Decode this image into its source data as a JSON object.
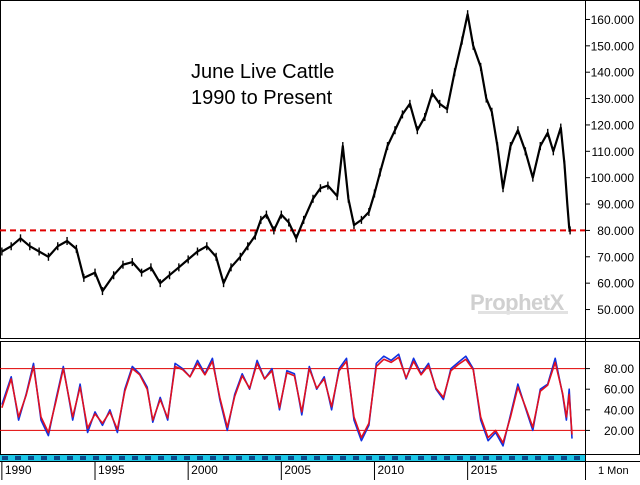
{
  "chart_data": [
    {
      "type": "line",
      "title": "June Live Cattle",
      "subtitle": "1990 to Present",
      "xlabel": "",
      "ylabel": "",
      "x_tick_labels": [
        "1990",
        "1995",
        "2000",
        "2005",
        "2010",
        "2015"
      ],
      "x_ticks": [
        1990,
        1995,
        2000,
        2005,
        2010,
        2015
      ],
      "xlim": [
        1989.9,
        2021.3
      ],
      "ylim": [
        43,
        167
      ],
      "y_ticks": [
        50,
        60,
        70,
        80,
        90,
        100,
        110,
        120,
        130,
        140,
        150,
        160
      ],
      "y_tick_labels": [
        "50.000",
        "60.000",
        "70.000",
        "80.000",
        "90.000",
        "100.000",
        "110.000",
        "120.000",
        "130.000",
        "140.000",
        "150.000",
        "160.000"
      ],
      "grid": false,
      "reference_lines": [
        {
          "y": 80,
          "color": "#e00000",
          "style": "dashed"
        }
      ],
      "series": [
        {
          "color": "#000000",
          "points": [
            [
              1990.0,
              72
            ],
            [
              1990.5,
              74
            ],
            [
              1991.0,
              77
            ],
            [
              1991.5,
              74
            ],
            [
              1992.0,
              72
            ],
            [
              1992.5,
              70
            ],
            [
              1993.0,
              74
            ],
            [
              1993.5,
              76
            ],
            [
              1994.0,
              73
            ],
            [
              1994.4,
              62
            ],
            [
              1995.0,
              64
            ],
            [
              1995.4,
              57
            ],
            [
              1996.0,
              63
            ],
            [
              1996.5,
              67
            ],
            [
              1997.0,
              68
            ],
            [
              1997.5,
              64
            ],
            [
              1998.0,
              66
            ],
            [
              1998.5,
              60
            ],
            [
              1999.0,
              63
            ],
            [
              1999.5,
              66
            ],
            [
              2000.0,
              69
            ],
            [
              2000.5,
              72
            ],
            [
              2001.0,
              74
            ],
            [
              2001.5,
              70
            ],
            [
              2001.9,
              60
            ],
            [
              2002.3,
              66
            ],
            [
              2002.8,
              70
            ],
            [
              2003.2,
              74
            ],
            [
              2003.6,
              78
            ],
            [
              2003.9,
              84
            ],
            [
              2004.2,
              86
            ],
            [
              2004.6,
              80
            ],
            [
              2005.0,
              86
            ],
            [
              2005.4,
              83
            ],
            [
              2005.8,
              77
            ],
            [
              2006.2,
              84
            ],
            [
              2006.7,
              92
            ],
            [
              2007.1,
              96
            ],
            [
              2007.5,
              97
            ],
            [
              2008.0,
              93
            ],
            [
              2008.3,
              112
            ],
            [
              2008.6,
              92
            ],
            [
              2008.9,
              82
            ],
            [
              2009.3,
              84
            ],
            [
              2009.7,
              87
            ],
            [
              2010.0,
              94
            ],
            [
              2010.3,
              102
            ],
            [
              2010.7,
              112
            ],
            [
              2011.1,
              118
            ],
            [
              2011.5,
              124
            ],
            [
              2011.9,
              128
            ],
            [
              2012.3,
              118
            ],
            [
              2012.7,
              123
            ],
            [
              2013.1,
              132
            ],
            [
              2013.5,
              128
            ],
            [
              2013.9,
              126
            ],
            [
              2014.3,
              140
            ],
            [
              2014.7,
              152
            ],
            [
              2015.0,
              162
            ],
            [
              2015.3,
              150
            ],
            [
              2015.7,
              142
            ],
            [
              2016.0,
              130
            ],
            [
              2016.3,
              125
            ],
            [
              2016.6,
              112
            ],
            [
              2016.9,
              96
            ],
            [
              2017.3,
              112
            ],
            [
              2017.7,
              118
            ],
            [
              2018.1,
              110
            ],
            [
              2018.5,
              100
            ],
            [
              2018.9,
              112
            ],
            [
              2019.3,
              117
            ],
            [
              2019.6,
              110
            ],
            [
              2020.0,
              119
            ],
            [
              2020.2,
              105
            ],
            [
              2020.35,
              90
            ],
            [
              2020.45,
              81
            ],
            [
              2020.5,
              80
            ]
          ]
        }
      ]
    },
    {
      "type": "line",
      "title": "",
      "xlim": [
        1989.9,
        2021.3
      ],
      "ylim": [
        0,
        100
      ],
      "y_ticks": [
        20,
        40,
        60,
        80
      ],
      "y_tick_labels": [
        "20.00",
        "40.00",
        "60.00",
        "80.00"
      ],
      "grid": false,
      "reference_lines": [
        {
          "y": 80,
          "color": "#e00000"
        },
        {
          "y": 20,
          "color": "#e00000"
        }
      ],
      "series": [
        {
          "color": "#1030e0",
          "points": [
            [
              1990.0,
              45
            ],
            [
              1990.5,
              72
            ],
            [
              1990.9,
              30
            ],
            [
              1991.3,
              55
            ],
            [
              1991.7,
              85
            ],
            [
              1992.1,
              30
            ],
            [
              1992.5,
              15
            ],
            [
              1992.9,
              50
            ],
            [
              1993.3,
              82
            ],
            [
              1993.8,
              30
            ],
            [
              1994.2,
              65
            ],
            [
              1994.6,
              18
            ],
            [
              1995.0,
              38
            ],
            [
              1995.4,
              25
            ],
            [
              1995.8,
              40
            ],
            [
              1996.2,
              18
            ],
            [
              1996.6,
              60
            ],
            [
              1997.0,
              82
            ],
            [
              1997.4,
              75
            ],
            [
              1997.8,
              62
            ],
            [
              1998.1,
              28
            ],
            [
              1998.5,
              52
            ],
            [
              1998.9,
              30
            ],
            [
              1999.3,
              85
            ],
            [
              1999.7,
              80
            ],
            [
              2000.1,
              72
            ],
            [
              2000.5,
              88
            ],
            [
              2000.9,
              75
            ],
            [
              2001.3,
              90
            ],
            [
              2001.7,
              50
            ],
            [
              2002.1,
              20
            ],
            [
              2002.5,
              55
            ],
            [
              2002.9,
              75
            ],
            [
              2003.3,
              60
            ],
            [
              2003.7,
              88
            ],
            [
              2004.1,
              70
            ],
            [
              2004.5,
              80
            ],
            [
              2004.9,
              40
            ],
            [
              2005.3,
              78
            ],
            [
              2005.7,
              75
            ],
            [
              2006.1,
              35
            ],
            [
              2006.5,
              82
            ],
            [
              2006.9,
              60
            ],
            [
              2007.3,
              72
            ],
            [
              2007.7,
              40
            ],
            [
              2008.1,
              80
            ],
            [
              2008.5,
              90
            ],
            [
              2008.9,
              30
            ],
            [
              2009.3,
              10
            ],
            [
              2009.7,
              25
            ],
            [
              2010.1,
              85
            ],
            [
              2010.5,
              92
            ],
            [
              2010.9,
              88
            ],
            [
              2011.3,
              94
            ],
            [
              2011.7,
              70
            ],
            [
              2012.1,
              90
            ],
            [
              2012.5,
              75
            ],
            [
              2012.9,
              85
            ],
            [
              2013.3,
              60
            ],
            [
              2013.7,
              50
            ],
            [
              2014.1,
              80
            ],
            [
              2014.5,
              86
            ],
            [
              2014.9,
              92
            ],
            [
              2015.3,
              80
            ],
            [
              2015.7,
              30
            ],
            [
              2016.1,
              10
            ],
            [
              2016.5,
              18
            ],
            [
              2016.9,
              5
            ],
            [
              2017.3,
              35
            ],
            [
              2017.7,
              65
            ],
            [
              2018.1,
              42
            ],
            [
              2018.5,
              20
            ],
            [
              2018.9,
              60
            ],
            [
              2019.3,
              65
            ],
            [
              2019.7,
              90
            ],
            [
              2020.1,
              55
            ],
            [
              2020.3,
              30
            ],
            [
              2020.45,
              60
            ],
            [
              2020.6,
              12
            ]
          ]
        },
        {
          "color": "#e01020",
          "points": [
            [
              1990.0,
              42
            ],
            [
              1990.5,
              70
            ],
            [
              1990.9,
              33
            ],
            [
              1991.3,
              54
            ],
            [
              1991.7,
              82
            ],
            [
              1992.1,
              33
            ],
            [
              1992.5,
              18
            ],
            [
              1992.9,
              48
            ],
            [
              1993.3,
              80
            ],
            [
              1993.8,
              33
            ],
            [
              1994.2,
              62
            ],
            [
              1994.6,
              22
            ],
            [
              1995.0,
              36
            ],
            [
              1995.4,
              27
            ],
            [
              1995.8,
              38
            ],
            [
              1996.2,
              21
            ],
            [
              1996.6,
              58
            ],
            [
              1997.0,
              80
            ],
            [
              1997.4,
              74
            ],
            [
              1997.8,
              60
            ],
            [
              1998.1,
              30
            ],
            [
              1998.5,
              50
            ],
            [
              1998.9,
              32
            ],
            [
              1999.3,
              82
            ],
            [
              1999.7,
              79
            ],
            [
              2000.1,
              72
            ],
            [
              2000.5,
              85
            ],
            [
              2000.9,
              74
            ],
            [
              2001.3,
              87
            ],
            [
              2001.7,
              52
            ],
            [
              2002.1,
              23
            ],
            [
              2002.5,
              53
            ],
            [
              2002.9,
              73
            ],
            [
              2003.3,
              61
            ],
            [
              2003.7,
              85
            ],
            [
              2004.1,
              70
            ],
            [
              2004.5,
              78
            ],
            [
              2004.9,
              42
            ],
            [
              2005.3,
              76
            ],
            [
              2005.7,
              73
            ],
            [
              2006.1,
              38
            ],
            [
              2006.5,
              80
            ],
            [
              2006.9,
              61
            ],
            [
              2007.3,
              70
            ],
            [
              2007.7,
              43
            ],
            [
              2008.1,
              78
            ],
            [
              2008.5,
              87
            ],
            [
              2008.9,
              33
            ],
            [
              2009.3,
              13
            ],
            [
              2009.7,
              27
            ],
            [
              2010.1,
              82
            ],
            [
              2010.5,
              89
            ],
            [
              2010.9,
              86
            ],
            [
              2011.3,
              91
            ],
            [
              2011.7,
              71
            ],
            [
              2012.1,
              87
            ],
            [
              2012.5,
              74
            ],
            [
              2012.9,
              83
            ],
            [
              2013.3,
              61
            ],
            [
              2013.7,
              52
            ],
            [
              2014.1,
              78
            ],
            [
              2014.5,
              84
            ],
            [
              2014.9,
              89
            ],
            [
              2015.3,
              79
            ],
            [
              2015.7,
              33
            ],
            [
              2016.1,
              13
            ],
            [
              2016.5,
              20
            ],
            [
              2016.9,
              8
            ],
            [
              2017.3,
              33
            ],
            [
              2017.7,
              62
            ],
            [
              2018.1,
              43
            ],
            [
              2018.5,
              23
            ],
            [
              2018.9,
              58
            ],
            [
              2019.3,
              64
            ],
            [
              2019.7,
              86
            ],
            [
              2020.1,
              56
            ],
            [
              2020.3,
              33
            ],
            [
              2020.45,
              55
            ],
            [
              2020.6,
              16
            ]
          ]
        }
      ]
    }
  ],
  "timeframe_label": "1 Mon",
  "watermark": "ProphetX",
  "colors": {
    "price": "#000000",
    "blue": "#1030e0",
    "red": "#e01020",
    "reference": "#e00000",
    "axis": "#000000",
    "track": "#1ec8e8"
  }
}
